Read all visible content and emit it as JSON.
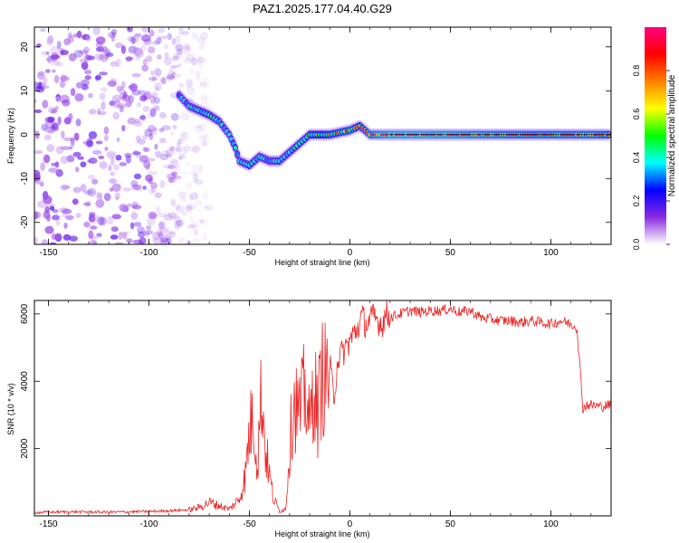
{
  "title": "PAZ1.2025.177.04.40.G29",
  "chart_data": [
    {
      "type": "heatmap",
      "xlabel": "Height of straight line (km)",
      "ylabel": "Frequency (Hz)",
      "xlim": [
        -157,
        130
      ],
      "ylim": [
        -25,
        24.5
      ],
      "xticks": [
        -150,
        -100,
        -50,
        0,
        50,
        100
      ],
      "yticks": [
        -20,
        -10,
        0,
        10,
        20
      ],
      "colorbar": {
        "label": "Normalized spectral amplitude",
        "range": [
          0,
          1
        ],
        "ticks": [
          "0.0",
          "0.2",
          "0.4",
          "0.6",
          "0.8"
        ],
        "tick_values": [
          0,
          0.2,
          0.4,
          0.6,
          0.8
        ],
        "colormap": [
          "#ffffff",
          "#8a2be2",
          "#0000ff",
          "#00ffff",
          "#00ff00",
          "#ffff00",
          "#ff8000",
          "#ff0000",
          "#ff0080"
        ]
      },
      "noise_region_x": [
        -157,
        -70
      ],
      "signal_ridge": [
        {
          "x": -85,
          "y": 9,
          "a": 0.45
        },
        {
          "x": -80,
          "y": 6.5,
          "a": 0.5
        },
        {
          "x": -75,
          "y": 5.5,
          "a": 0.55
        },
        {
          "x": -70,
          "y": 4.5,
          "a": 0.6
        },
        {
          "x": -65,
          "y": 3,
          "a": 0.55
        },
        {
          "x": -60,
          "y": 0,
          "a": 0.5
        },
        {
          "x": -57,
          "y": -3,
          "a": 0.55
        },
        {
          "x": -55,
          "y": -6,
          "a": 0.5
        },
        {
          "x": -50,
          "y": -7,
          "a": 0.6
        },
        {
          "x": -45,
          "y": -5,
          "a": 0.55
        },
        {
          "x": -40,
          "y": -6,
          "a": 0.5
        },
        {
          "x": -35,
          "y": -6,
          "a": 0.55
        },
        {
          "x": -30,
          "y": -4,
          "a": 0.55
        },
        {
          "x": -25,
          "y": -2,
          "a": 0.6
        },
        {
          "x": -20,
          "y": 0,
          "a": 0.65
        },
        {
          "x": -10,
          "y": 0,
          "a": 0.75
        },
        {
          "x": 0,
          "y": 1,
          "a": 0.8
        },
        {
          "x": 5,
          "y": 2,
          "a": 0.75
        },
        {
          "x": 10,
          "y": 0,
          "a": 0.85
        },
        {
          "x": 20,
          "y": 0,
          "a": 0.95
        },
        {
          "x": 40,
          "y": 0,
          "a": 0.95
        },
        {
          "x": 60,
          "y": 0,
          "a": 0.9
        },
        {
          "x": 80,
          "y": 0,
          "a": 0.85
        },
        {
          "x": 100,
          "y": 0,
          "a": 0.85
        },
        {
          "x": 120,
          "y": 0,
          "a": 0.85
        },
        {
          "x": 130,
          "y": 0,
          "a": 0.8
        }
      ]
    },
    {
      "type": "line",
      "xlabel": "Height of straight line (km)",
      "ylabel": "SNR (10 * v/v)",
      "xlim": [
        -157,
        130
      ],
      "ylim": [
        0,
        6400
      ],
      "xticks": [
        -150,
        -100,
        -50,
        0,
        50,
        100
      ],
      "yticks": [
        2000,
        4000,
        6000
      ],
      "line_color": "#ee2222",
      "series": [
        {
          "x": [
            -157,
            -140,
            -120,
            -100,
            -90,
            -80,
            -75,
            -70,
            -65,
            -60,
            -55,
            -52,
            -50,
            -48,
            -46,
            -44,
            -42,
            -40,
            -38,
            -35,
            -32,
            -30,
            -28,
            -25,
            -22,
            -20,
            -18,
            -16,
            -14,
            -12,
            -10,
            -8,
            -6,
            -4,
            -2,
            0,
            2,
            4,
            6,
            8,
            10,
            12,
            14,
            16,
            18,
            20,
            25,
            30,
            35,
            40,
            45,
            50,
            55,
            60,
            65,
            70,
            75,
            80,
            85,
            90,
            95,
            100,
            105,
            110,
            113,
            115,
            116,
            118,
            120,
            125,
            130
          ],
          "y": [
            100,
            120,
            110,
            130,
            150,
            180,
            250,
            400,
            300,
            200,
            500,
            1200,
            2500,
            3000,
            1500,
            3800,
            2000,
            1200,
            500,
            150,
            200,
            2000,
            3500,
            3000,
            3800,
            2500,
            4000,
            3000,
            4200,
            4000,
            4500,
            3500,
            4700,
            4800,
            5000,
            5200,
            5400,
            5600,
            5900,
            5700,
            5800,
            5900,
            5800,
            5700,
            6000,
            5900,
            6000,
            6100,
            6050,
            6100,
            6100,
            6150,
            6050,
            6100,
            5900,
            5850,
            5800,
            5800,
            5750,
            5800,
            5750,
            5700,
            5800,
            5700,
            5600,
            4000,
            3200,
            3300,
            3300,
            3250,
            3300
          ]
        }
      ]
    }
  ]
}
